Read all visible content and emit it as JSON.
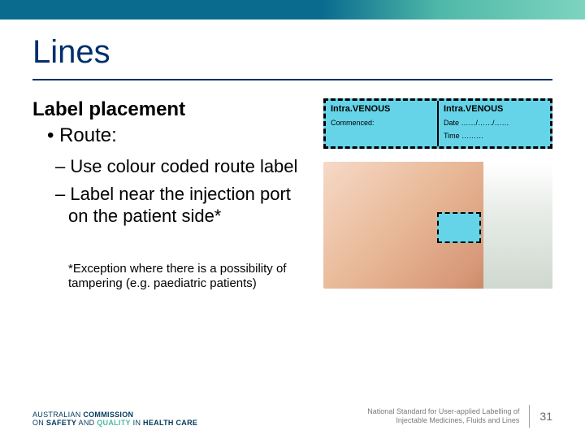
{
  "topbar": {
    "gradient_from": "#0a6b8f",
    "gradient_to": "#7dd4c0"
  },
  "title": "Lines",
  "subheading": "Label placement",
  "bullets": {
    "l1": "Route:",
    "l2a": "Use colour coded route label",
    "l2b": "Label near the injection port on the patient side*"
  },
  "footnote": "*Exception where there is a possibility of tampering (e.g. paediatric patients)",
  "route_label": {
    "bg_color": "#65d4e8",
    "border_style": "dashed",
    "left": {
      "prefix": "Intra.",
      "main": "VENOUS",
      "sub": "Commenced:"
    },
    "right": {
      "prefix": "Intra.",
      "main": "VENOUS",
      "sub1": "Date ……/……/……",
      "sub2": "Time ………"
    }
  },
  "arm_photo": {
    "description": "patient forearm with IV cannula and small Intra.VENOUS route label near injection port",
    "skin_tone": "#e8b896",
    "dressing_color": "#e8ece8"
  },
  "footer": {
    "logo": {
      "line1_a": "AUSTRALIAN ",
      "line1_b": "COMMISSION",
      "line2_on": "ON ",
      "line2_safety": "SAFETY",
      "line2_and": " AND ",
      "line2_quality": "QUALITY",
      "line2_in": " IN ",
      "line2_health": "HEALTH CARE"
    },
    "standard": {
      "line1": "National Standard for User-applied Labelling of",
      "line2": "Injectable Medicines, Fluids and Lines"
    },
    "page": "31"
  },
  "colors": {
    "title_color": "#002f6c",
    "text_color": "#000000",
    "footer_grey": "#7a7a7a"
  }
}
